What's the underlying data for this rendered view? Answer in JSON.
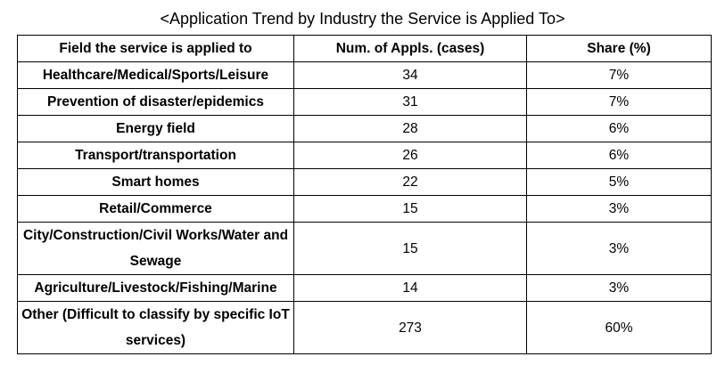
{
  "title": "<Application Trend by Industry the Service is Applied To>",
  "headers": [
    "Field the service is applied to",
    "Num. of Appls. (cases)",
    "Share (%)"
  ],
  "rows": [
    {
      "field": "Healthcare/Medical/Sports/Leisure",
      "count": "34",
      "share": "7%"
    },
    {
      "field": "Prevention of disaster/epidemics",
      "count": "31",
      "share": "7%"
    },
    {
      "field": "Energy field",
      "count": "28",
      "share": "6%"
    },
    {
      "field": "Transport/transportation",
      "count": "26",
      "share": "6%"
    },
    {
      "field": "Smart homes",
      "count": "22",
      "share": "5%"
    },
    {
      "field": "Retail/Commerce",
      "count": "15",
      "share": "3%"
    },
    {
      "field": "City/Construction/Civil Works/Water and Sewage",
      "count": "15",
      "share": "3%"
    },
    {
      "field": "Agriculture/Livestock/Fishing/Marine",
      "count": "14",
      "share": "3%"
    },
    {
      "field": "Other (Difficult to classify by specific IoT services)",
      "count": "273",
      "share": "60%"
    }
  ]
}
